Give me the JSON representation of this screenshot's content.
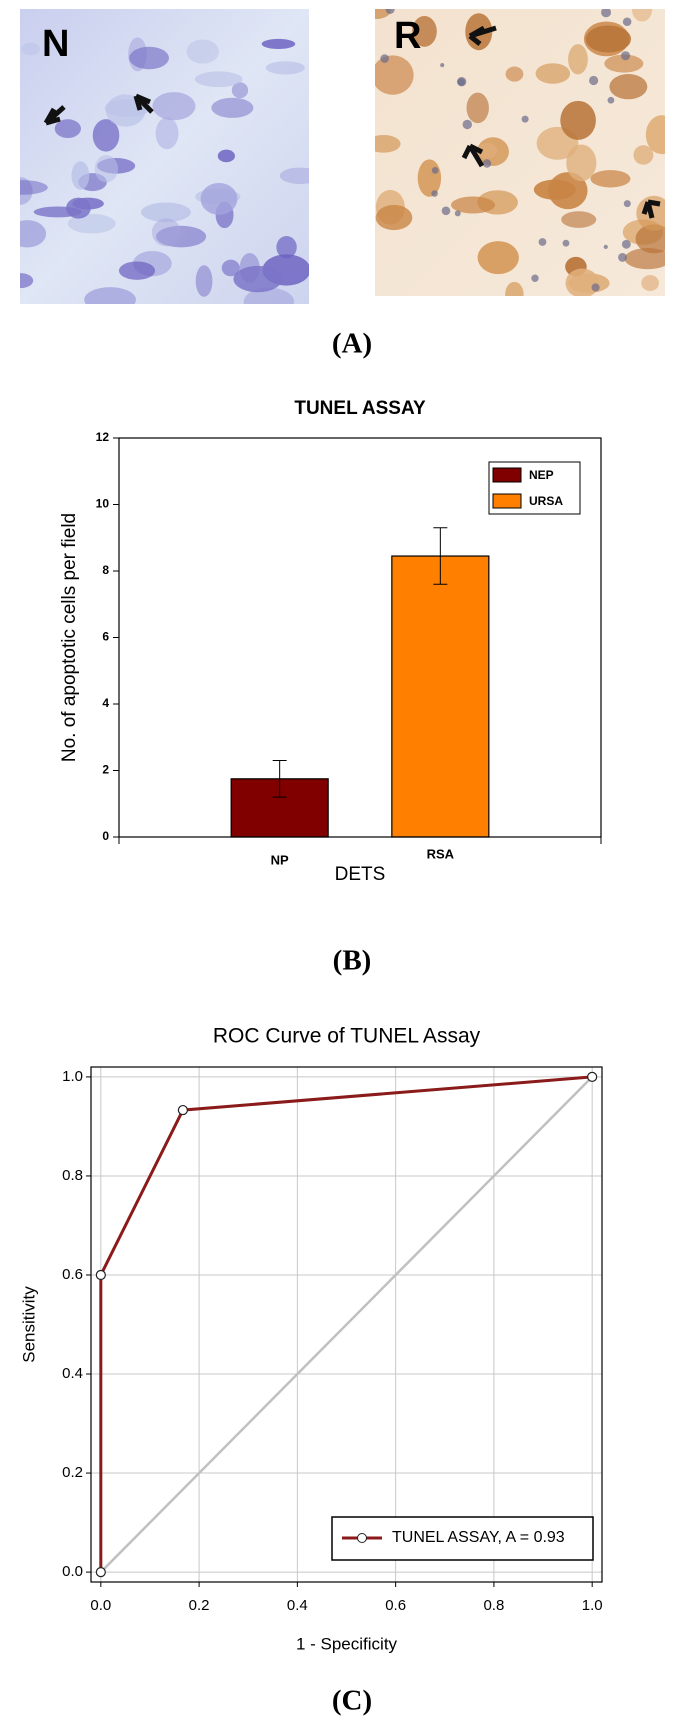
{
  "images": [
    {
      "label": "N"
    },
    {
      "label": "R"
    }
  ],
  "panel_labels": [
    "(A)",
    "(B)",
    "(C)"
  ],
  "chart_data": [
    {
      "type": "bar",
      "title": "TUNEL ASSAY",
      "x_label": "DETS",
      "y_label": "No. of apoptotic cells per field",
      "categories": [
        "NP",
        "RSA"
      ],
      "series": [
        {
          "name": "NEP",
          "color": "#800000",
          "values": [
            1.75,
            null
          ],
          "errors": [
            0.55,
            null
          ]
        },
        {
          "name": "URSA",
          "color": "#ff8000",
          "values": [
            null,
            8.45
          ],
          "errors": [
            null,
            0.85
          ]
        }
      ],
      "ylim": [
        0,
        12
      ],
      "yticks": [
        0,
        2,
        4,
        6,
        8,
        10,
        12
      ],
      "legend": "upper right",
      "grid": false
    },
    {
      "type": "line",
      "title": "ROC Curve of TUNEL Assay",
      "x_label": "1 - Specificity",
      "y_label": "Sensitivity",
      "series": [
        {
          "color": "#c0c0c0",
          "x": [
            0,
            1
          ],
          "values": [
            0,
            1
          ]
        },
        {
          "name": "TUNEL ASSAY, A = 0.93",
          "color": "#8b1a1a",
          "marker": "circle",
          "x": [
            0,
            0,
            0.167,
            1
          ],
          "values": [
            0,
            0.6,
            0.933,
            1
          ]
        }
      ],
      "xlim": [
        -0.02,
        1.02
      ],
      "ylim": [
        -0.02,
        1.02
      ],
      "xticks": [
        {
          "value": 0,
          "label": "0.0"
        },
        {
          "value": 0.2,
          "label": "0.2"
        },
        {
          "value": 0.4,
          "label": "0.4"
        },
        {
          "value": 0.6,
          "label": "0.6"
        },
        {
          "value": 0.8,
          "label": "0.8"
        },
        {
          "value": 1,
          "label": "1.0"
        }
      ],
      "yticks": [
        {
          "value": 0,
          "label": "0.0"
        },
        {
          "value": 0.2,
          "label": "0.2"
        },
        {
          "value": 0.4,
          "label": "0.4"
        },
        {
          "value": 0.6,
          "label": "0.6"
        },
        {
          "value": 0.8,
          "label": "0.8"
        },
        {
          "value": 1,
          "label": "1.0"
        }
      ],
      "legend": "lower right",
      "grid": true
    }
  ]
}
